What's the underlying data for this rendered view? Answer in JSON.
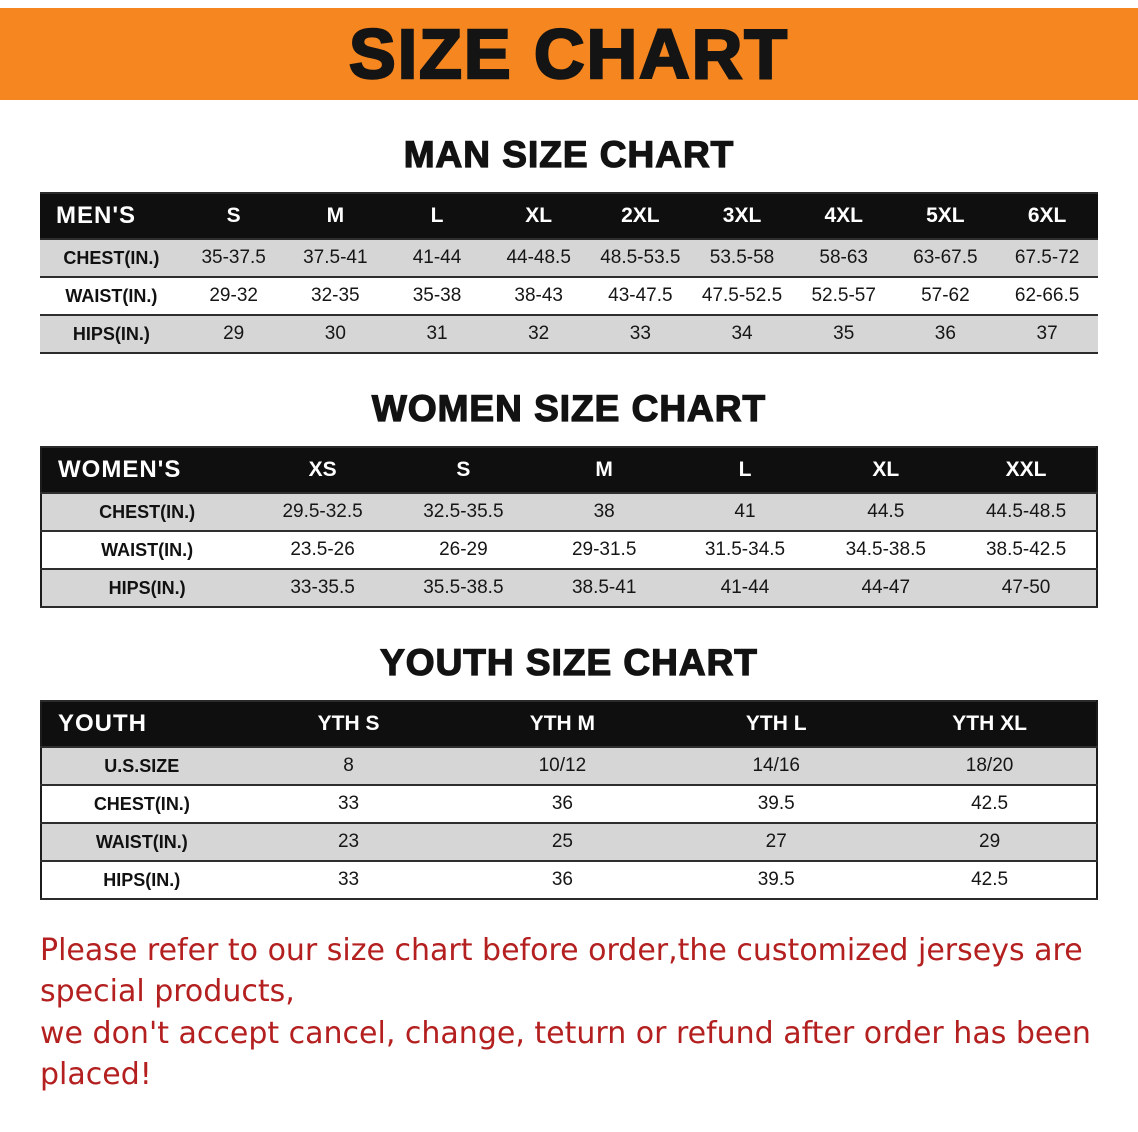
{
  "banner": {
    "title": "SIZE CHART",
    "background": "#f6861f"
  },
  "tables": [
    {
      "heading": "MAN SIZE CHART",
      "header": [
        "MEN'S",
        "S",
        "M",
        "L",
        "XL",
        "2XL",
        "3XL",
        "4XL",
        "5XL",
        "6XL"
      ],
      "rows": [
        {
          "label": "CHEST(IN.)",
          "values": [
            "35-37.5",
            "37.5-41",
            "41-44",
            "44-48.5",
            "48.5-53.5",
            "53.5-58",
            "58-63",
            "63-67.5",
            "67.5-72"
          ]
        },
        {
          "label": "WAIST(IN.)",
          "values": [
            "29-32",
            "32-35",
            "35-38",
            "38-43",
            "43-47.5",
            "47.5-52.5",
            "52.5-57",
            "57-62",
            "62-66.5"
          ]
        },
        {
          "label": "HIPS(IN.)",
          "values": [
            "29",
            "30",
            "31",
            "32",
            "33",
            "34",
            "35",
            "36",
            "37"
          ]
        }
      ]
    },
    {
      "heading": "WOMEN SIZE CHART",
      "header": [
        "WOMEN'S",
        "XS",
        "S",
        "M",
        "L",
        "XL",
        "XXL"
      ],
      "rows": [
        {
          "label": "CHEST(IN.)",
          "values": [
            "29.5-32.5",
            "32.5-35.5",
            "38",
            "41",
            "44.5",
            "44.5-48.5"
          ]
        },
        {
          "label": "WAIST(IN.)",
          "values": [
            "23.5-26",
            "26-29",
            "29-31.5",
            "31.5-34.5",
            "34.5-38.5",
            "38.5-42.5"
          ]
        },
        {
          "label": "HIPS(IN.)",
          "values": [
            "33-35.5",
            "35.5-38.5",
            "38.5-41",
            "41-44",
            "44-47",
            "47-50"
          ]
        }
      ]
    },
    {
      "heading": "YOUTH SIZE CHART",
      "header": [
        "YOUTH",
        "YTH S",
        "YTH M",
        "YTH L",
        "YTH XL"
      ],
      "rows": [
        {
          "label": "U.S.SIZE",
          "values": [
            "8",
            "10/12",
            "14/16",
            "18/20"
          ]
        },
        {
          "label": "CHEST(IN.)",
          "values": [
            "33",
            "36",
            "39.5",
            "42.5"
          ]
        },
        {
          "label": "WAIST(IN.)",
          "values": [
            "23",
            "25",
            "27",
            "29"
          ]
        },
        {
          "label": "HIPS(IN.)",
          "values": [
            "33",
            "36",
            "39.5",
            "42.5"
          ]
        }
      ]
    }
  ],
  "note": {
    "line1": "Please refer to our size chart before order,the customized jerseys are special products,",
    "line2": "we don't accept cancel, change, teturn or refund after order has been placed!",
    "color": "#b42020"
  }
}
